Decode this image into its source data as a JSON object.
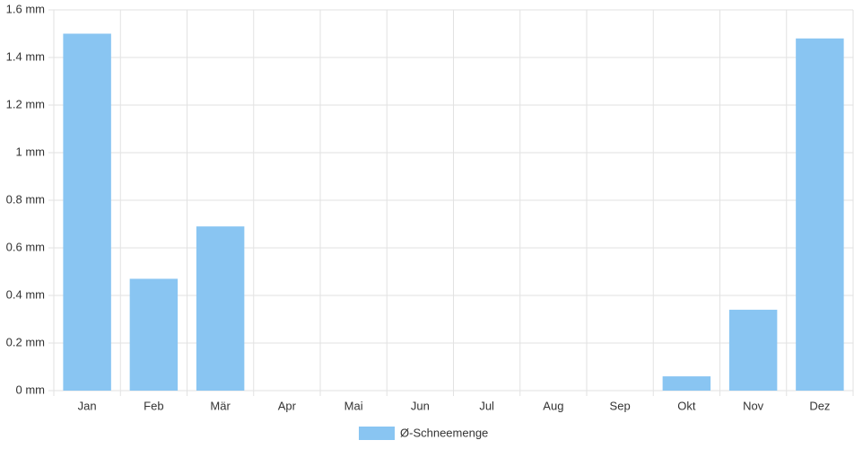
{
  "chart_data": {
    "type": "bar",
    "categories": [
      "Jan",
      "Feb",
      "Mär",
      "Apr",
      "Mai",
      "Jun",
      "Jul",
      "Aug",
      "Sep",
      "Okt",
      "Nov",
      "Dez"
    ],
    "series": [
      {
        "name": "Ø-Schneemenge",
        "color": "#89c5f2",
        "values": [
          1.5,
          0.47,
          0.69,
          0,
          0,
          0,
          0,
          0,
          0,
          0.06,
          0.34,
          1.48
        ]
      }
    ],
    "ylim": [
      0,
      1.6
    ],
    "yticks": [
      {
        "value": 0,
        "label": "0 mm"
      },
      {
        "value": 0.2,
        "label": "0.2 mm"
      },
      {
        "value": 0.4,
        "label": "0.4 mm"
      },
      {
        "value": 0.6,
        "label": "0.6 mm"
      },
      {
        "value": 0.8,
        "label": "0.8 mm"
      },
      {
        "value": 1,
        "label": "1 mm"
      },
      {
        "value": 1.2,
        "label": "1.2 mm"
      },
      {
        "value": 1.4,
        "label": "1.4 mm"
      },
      {
        "value": 1.6,
        "label": "1.6 mm"
      }
    ],
    "grid": true,
    "legend": "bottom"
  }
}
